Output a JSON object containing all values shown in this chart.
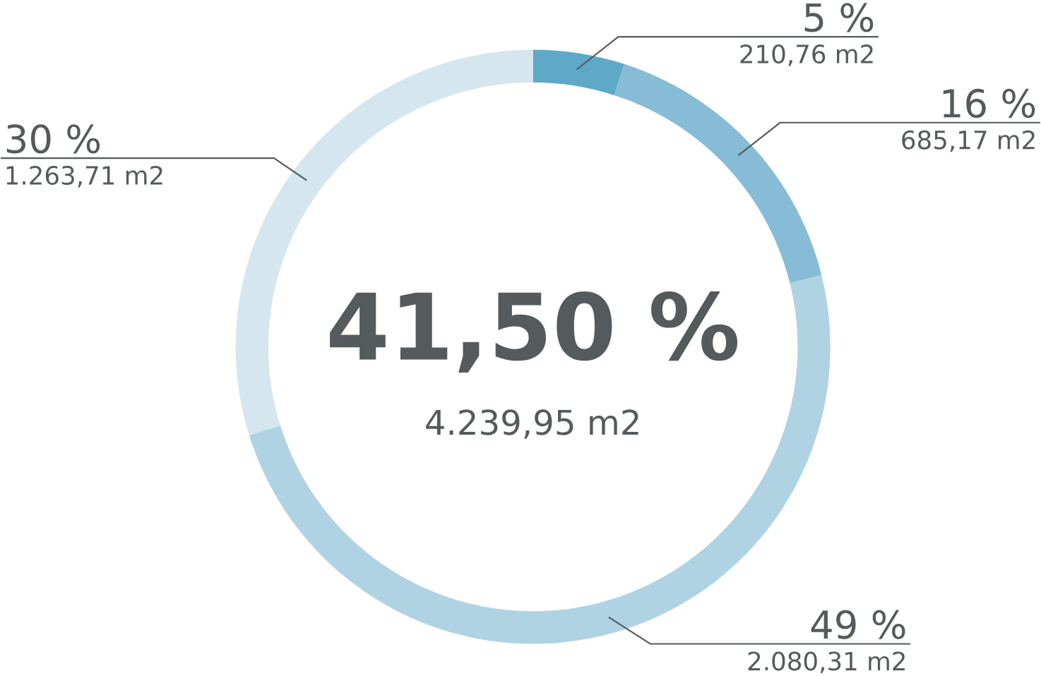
{
  "chart_data": {
    "type": "donut",
    "title": "41,50 %",
    "subtitle": "4.239,95 m2",
    "categories": [
      null,
      null,
      null,
      null
    ],
    "values": [
      210.76,
      685.17,
      2080.31,
      1263.71
    ],
    "colors": [
      "#5ea8c8",
      "#86bcd6",
      "#b0d3e3",
      "#d5e6ef"
    ],
    "value_labels": [
      "210,76 m2",
      "685,17 m2",
      "2.080,31 m2",
      "1.263,71 m2"
    ],
    "annotations": [
      "5 %",
      "16 %",
      "49 %",
      "30 %"
    ]
  }
}
